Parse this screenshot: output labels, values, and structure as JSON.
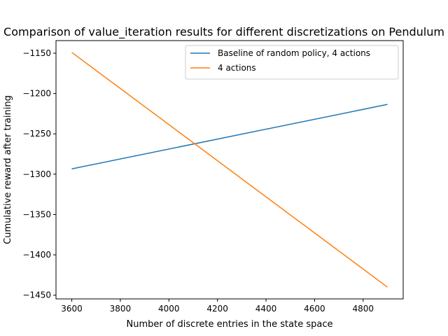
{
  "chart_data": {
    "type": "line",
    "title": "Comparison of value_iteration results for different discretizations on Pendulum",
    "xlabel": "Number of discrete entries in the state space",
    "ylabel": "Cumulative reward after training",
    "xlim": [
      3535,
      4965
    ],
    "ylim": [
      -1454.6,
      -1134.4
    ],
    "x_ticks": [
      3600,
      3800,
      4000,
      4200,
      4400,
      4600,
      4800
    ],
    "y_ticks": [
      -1450,
      -1400,
      -1350,
      -1300,
      -1250,
      -1200,
      -1150
    ],
    "grid": false,
    "legend_position": "upper-right",
    "series": [
      {
        "name": "Baseline of random policy, 4 actions",
        "color": "#1f77b4",
        "x": [
          3600,
          4900
        ],
        "y": [
          -1293.4,
          -1213.5
        ]
      },
      {
        "name": "4 actions",
        "color": "#ff7f0e",
        "x": [
          3600,
          4900
        ],
        "y": [
          -1149.0,
          -1440.0
        ]
      }
    ]
  }
}
